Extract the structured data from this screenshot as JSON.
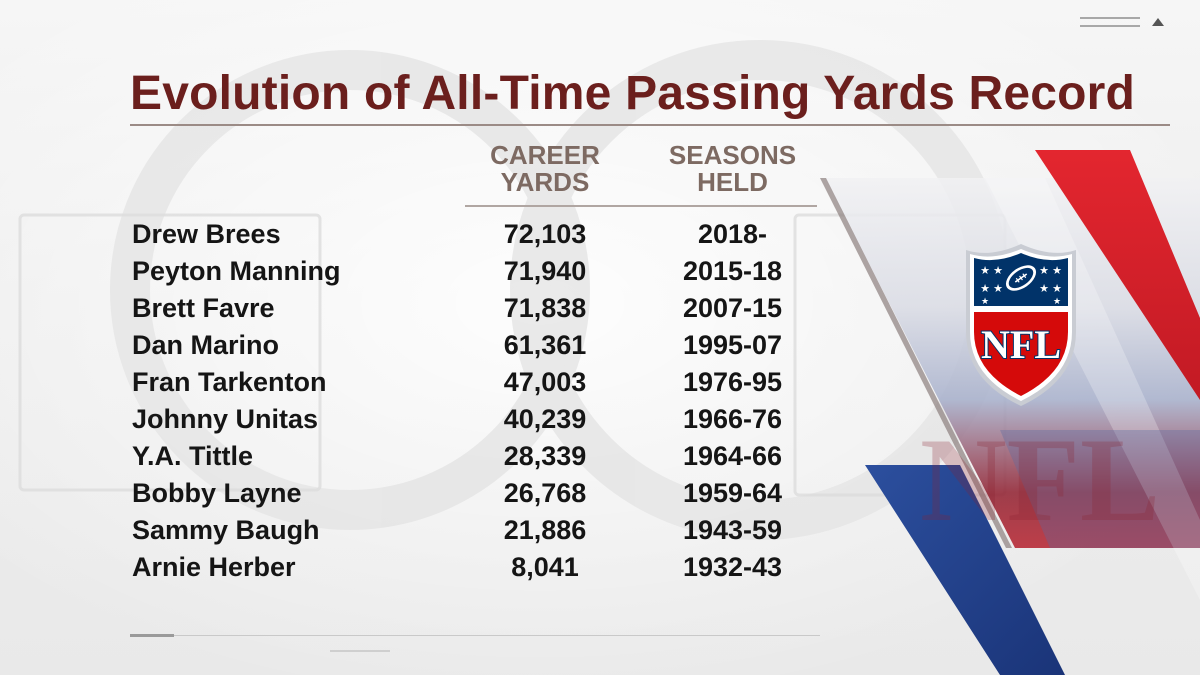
{
  "title": "Evolution of All-Time Passing Yards Record",
  "headers": {
    "yards_line1": "CAREER",
    "yards_line2": "YARDS",
    "seasons_line1": "SEASONS",
    "seasons_line2": "HELD"
  },
  "rows": [
    {
      "name": "Drew Brees",
      "yards": "72,103",
      "seasons": "2018-"
    },
    {
      "name": "Peyton Manning",
      "yards": "71,940",
      "seasons": "2015-18"
    },
    {
      "name": "Brett Favre",
      "yards": "71,838",
      "seasons": "2007-15"
    },
    {
      "name": "Dan Marino",
      "yards": "61,361",
      "seasons": "1995-07"
    },
    {
      "name": "Fran Tarkenton",
      "yards": "47,003",
      "seasons": "1976-95"
    },
    {
      "name": "Johnny Unitas",
      "yards": "40,239",
      "seasons": "1966-76"
    },
    {
      "name": "Y.A. Tittle",
      "yards": "28,339",
      "seasons": "1964-66"
    },
    {
      "name": "Bobby Layne",
      "yards": "26,768",
      "seasons": "1959-64"
    },
    {
      "name": "Sammy Baugh",
      "yards": "21,886",
      "seasons": "1943-59"
    },
    {
      "name": "Arnie Herber",
      "yards": "8,041",
      "seasons": "1932-43"
    }
  ],
  "logo": {
    "text": "NFL",
    "icon": "nfl-shield-logo"
  },
  "colors": {
    "title": "#6b1f1d",
    "header": "#7d6a62",
    "text": "#151515",
    "accent_red": "#d8202a",
    "accent_blue": "#1e3f8c",
    "logo_blue": "#013369",
    "logo_red": "#d50a0a"
  }
}
